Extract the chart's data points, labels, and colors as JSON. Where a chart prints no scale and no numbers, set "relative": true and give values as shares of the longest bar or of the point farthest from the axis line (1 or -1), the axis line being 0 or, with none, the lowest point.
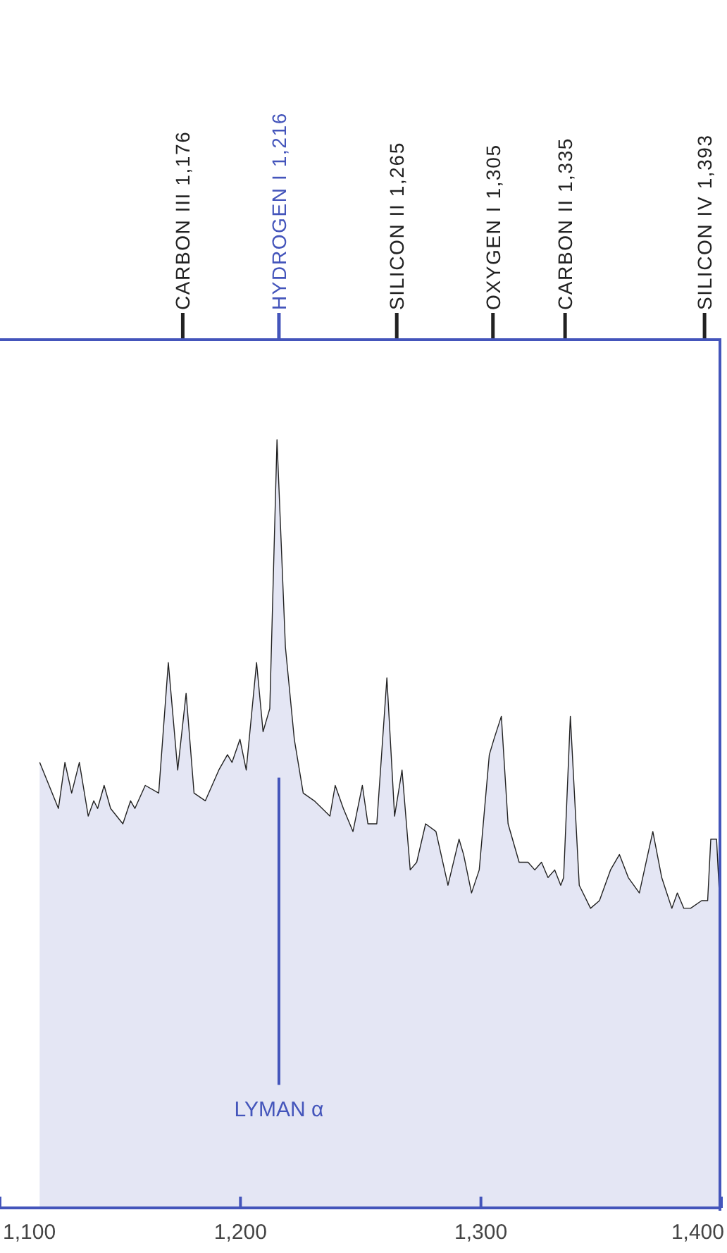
{
  "chart_data": {
    "type": "area",
    "relative": true,
    "x": [
      1116.5,
      1124.3,
      1127,
      1129.8,
      1133,
      1136.7,
      1139,
      1140.6,
      1143.3,
      1146,
      1151.1,
      1154.3,
      1156.1,
      1160.4,
      1166,
      1170,
      1173.9,
      1177.4,
      1180.7,
      1185.4,
      1191,
      1194.6,
      1196.5,
      1199.8,
      1202.4,
      1206.7,
      1209.4,
      1212.2,
      1215.2,
      1218.7,
      1222.4,
      1226.1,
      1230.7,
      1237.2,
      1239.4,
      1242.8,
      1246.8,
      1250.7,
      1253,
      1256.7,
      1260.9,
      1264.1,
      1267.2,
      1270.6,
      1273.3,
      1277,
      1281.3,
      1286.3,
      1290.9,
      1292.8,
      1296.1,
      1299.3,
      1303.5,
      1305.4,
      1308.5,
      1311.3,
      1315.9,
      1319.6,
      1322.4,
      1325.2,
      1327.9,
      1330.7,
      1333.2,
      1334.4,
      1337.2,
      1340.9,
      1345.6,
      1349.3,
      1353.9,
      1357.6,
      1361.3,
      1365.9,
      1371.5,
      1375.2,
      1379.4,
      1381.7,
      1384.4,
      1387.2,
      1391.8,
      1394.3,
      1395.6,
      1398,
      1399.3
    ],
    "series": [
      {
        "color": "#222222",
        "values": [
          0.58,
          0.52,
          0.58,
          0.54,
          0.58,
          0.51,
          0.53,
          0.52,
          0.55,
          0.52,
          0.5,
          0.53,
          0.52,
          0.55,
          0.54,
          0.71,
          0.57,
          0.67,
          0.54,
          0.53,
          0.57,
          0.59,
          0.58,
          0.61,
          0.57,
          0.71,
          0.62,
          0.65,
          1.0,
          0.73,
          0.61,
          0.54,
          0.53,
          0.51,
          0.55,
          0.52,
          0.49,
          0.55,
          0.5,
          0.5,
          0.69,
          0.51,
          0.57,
          0.44,
          0.45,
          0.5,
          0.49,
          0.42,
          0.48,
          0.46,
          0.41,
          0.44,
          0.59,
          0.61,
          0.64,
          0.5,
          0.45,
          0.45,
          0.44,
          0.45,
          0.43,
          0.44,
          0.42,
          0.43,
          0.64,
          0.42,
          0.39,
          0.4,
          0.44,
          0.46,
          0.43,
          0.41,
          0.49,
          0.43,
          0.39,
          0.41,
          0.39,
          0.39,
          0.4,
          0.4,
          0.48,
          0.48,
          0.4
        ]
      }
    ],
    "xlim": [
      1100,
      1400
    ],
    "xticks": [
      {
        "value": 1100,
        "label": "1,100"
      },
      {
        "value": 1200,
        "label": "1,200"
      },
      {
        "value": 1300,
        "label": "1,300"
      },
      {
        "value": 1400,
        "label": "1,400"
      }
    ],
    "ref_lines": [
      {
        "axis": "x",
        "value": 1216,
        "label": "LYMAN α",
        "color": "#4455bb"
      },
      {
        "axis": "x",
        "value": 1176,
        "label": "CARBON III 1,176",
        "color": "#222222"
      },
      {
        "axis": "x",
        "value": 1216,
        "label": "HYDROGEN I 1,216",
        "color": "#4455bb"
      },
      {
        "axis": "x",
        "value": 1265,
        "label": "SILICON II 1,265",
        "color": "#222222"
      },
      {
        "axis": "x",
        "value": 1305,
        "label": "OXYGEN I 1,305",
        "color": "#222222"
      },
      {
        "axis": "x",
        "value": 1335,
        "label": "CARBON II 1,335",
        "color": "#222222"
      },
      {
        "axis": "x",
        "value": 1393,
        "label": "SILICON IV 1,393",
        "color": "#222222"
      }
    ]
  }
}
